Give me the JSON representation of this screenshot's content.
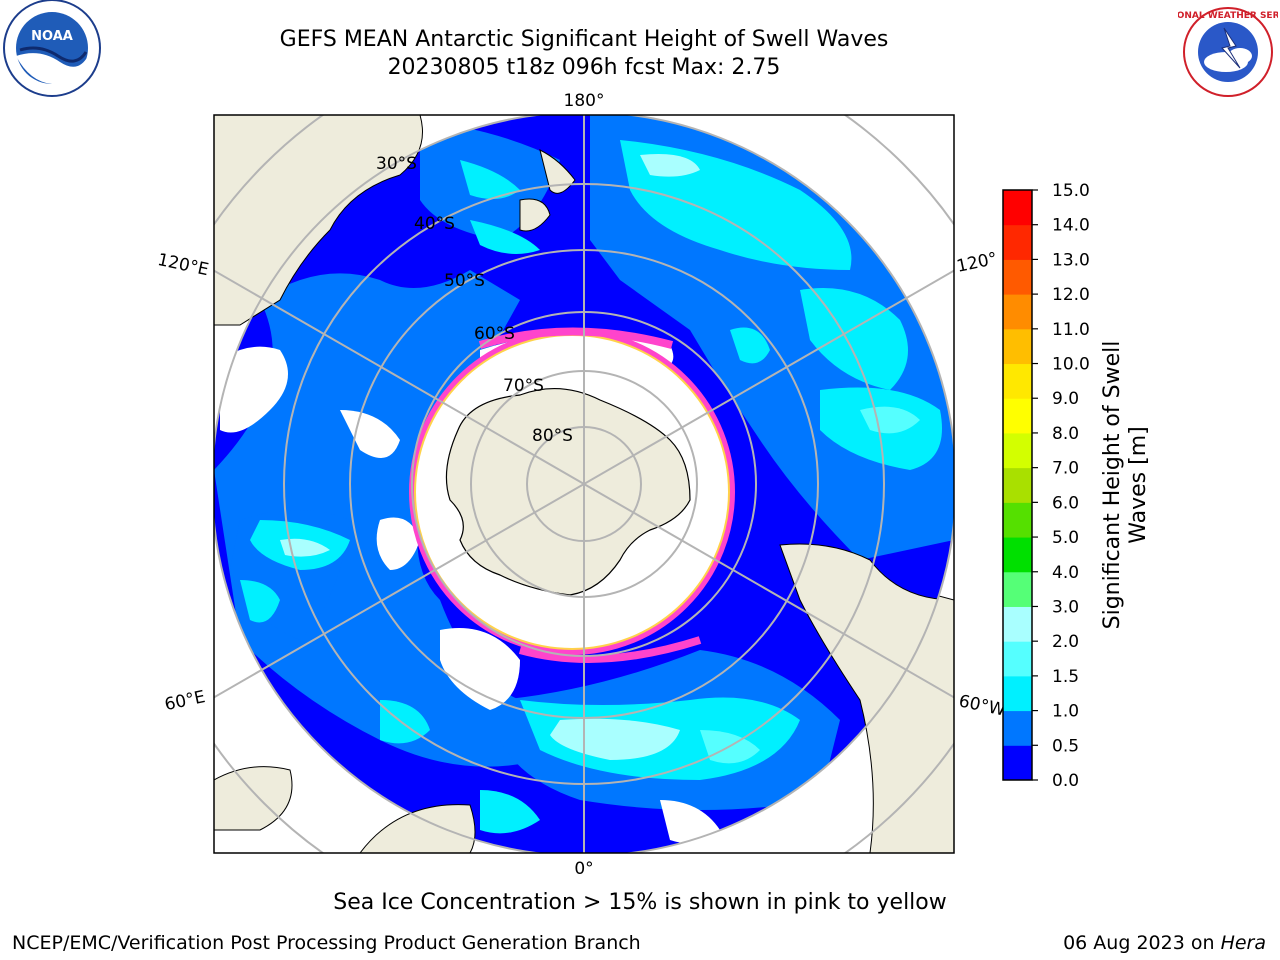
{
  "title": {
    "line1": "GEFS MEAN Antarctic Significant Height of Swell Waves",
    "line2": "20230805 t18z 096h fcst   Max: 2.75"
  },
  "logos": {
    "noaa": {
      "icon": "noaa-logo-icon",
      "text": "NOAA"
    },
    "nws": {
      "icon": "nws-logo-icon",
      "text": "NATIONAL WEATHER SERVICE"
    }
  },
  "map": {
    "projection": "south-polar-stereographic",
    "meridian_labels": {
      "top": "180°",
      "bottom": "0°",
      "left_upper": "120°E",
      "left_lower": "60°E",
      "right_upper": "120°",
      "right_lower": "60°W"
    },
    "parallel_labels": [
      "30°S",
      "40°S",
      "50°S",
      "60°S",
      "70°S",
      "80°S"
    ],
    "colors": {
      "land": "#eeecdc",
      "ice": "#ffffff",
      "ice_edge": [
        "#ff44cc",
        "#ffd24a"
      ],
      "graticule": "#b4b4b4"
    }
  },
  "colorbar": {
    "label": "Significant Height of Swell Waves [m]",
    "ticks": [
      "0.0",
      "0.5",
      "1.0",
      "1.5",
      "2.0",
      "3.0",
      "4.0",
      "5.0",
      "6.0",
      "7.0",
      "8.0",
      "9.0",
      "10.0",
      "11.0",
      "12.0",
      "13.0",
      "14.0",
      "15.0"
    ],
    "colors": [
      "#0000ff",
      "#0077ff",
      "#00f0ff",
      "#55ffff",
      "#a9ffff",
      "#55ff77",
      "#00e000",
      "#55e000",
      "#a9e000",
      "#d3ff00",
      "#ffff00",
      "#ffe800",
      "#ffbe00",
      "#ff8c00",
      "#ff5a00",
      "#ff2800",
      "#ff0000"
    ]
  },
  "notes": {
    "ice": "Sea Ice Concentration > 15% is shown in pink to yellow"
  },
  "footer": {
    "left": "NCEP/EMC/Verification Post Processing Product Generation Branch",
    "date": "06 Aug 2023 on ",
    "host": "Hera"
  }
}
